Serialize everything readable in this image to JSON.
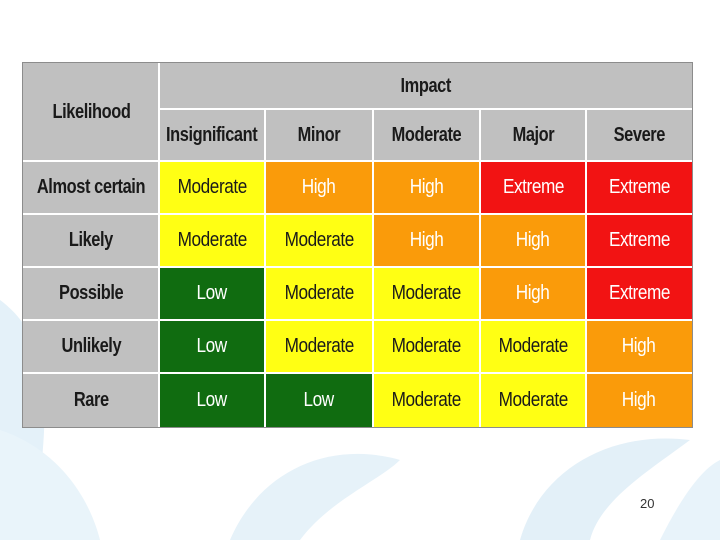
{
  "matrix": {
    "likelihood_label": "Likelihood",
    "impact_label": "Impact",
    "impact_levels": [
      "Insignificant",
      "Minor",
      "Moderate",
      "Major",
      "Severe"
    ],
    "rows": [
      {
        "likelihood": "Almost certain",
        "cells": [
          "Moderate",
          "High",
          "High",
          "Extreme",
          "Extreme"
        ]
      },
      {
        "likelihood": "Likely",
        "cells": [
          "Moderate",
          "Moderate",
          "High",
          "High",
          "Extreme"
        ]
      },
      {
        "likelihood": "Possible",
        "cells": [
          "Low",
          "Moderate",
          "Moderate",
          "High",
          "Extreme"
        ]
      },
      {
        "likelihood": "Unlikely",
        "cells": [
          "Low",
          "Moderate",
          "Moderate",
          "Moderate",
          "High"
        ]
      },
      {
        "likelihood": "Rare",
        "cells": [
          "Low",
          "Low",
          "Moderate",
          "Moderate",
          "High"
        ]
      }
    ]
  },
  "rating_colors": {
    "Low": {
      "bg": "#106c10",
      "fg": "#ffffff"
    },
    "Moderate": {
      "bg": "#ffff14",
      "fg": "#1a1a1a"
    },
    "High": {
      "bg": "#fa9b0a",
      "fg": "#ffffff"
    },
    "Extreme": {
      "bg": "#f21313",
      "fg": "#ffffff"
    }
  },
  "header_color": "#c0c0c0",
  "page_number": "20"
}
